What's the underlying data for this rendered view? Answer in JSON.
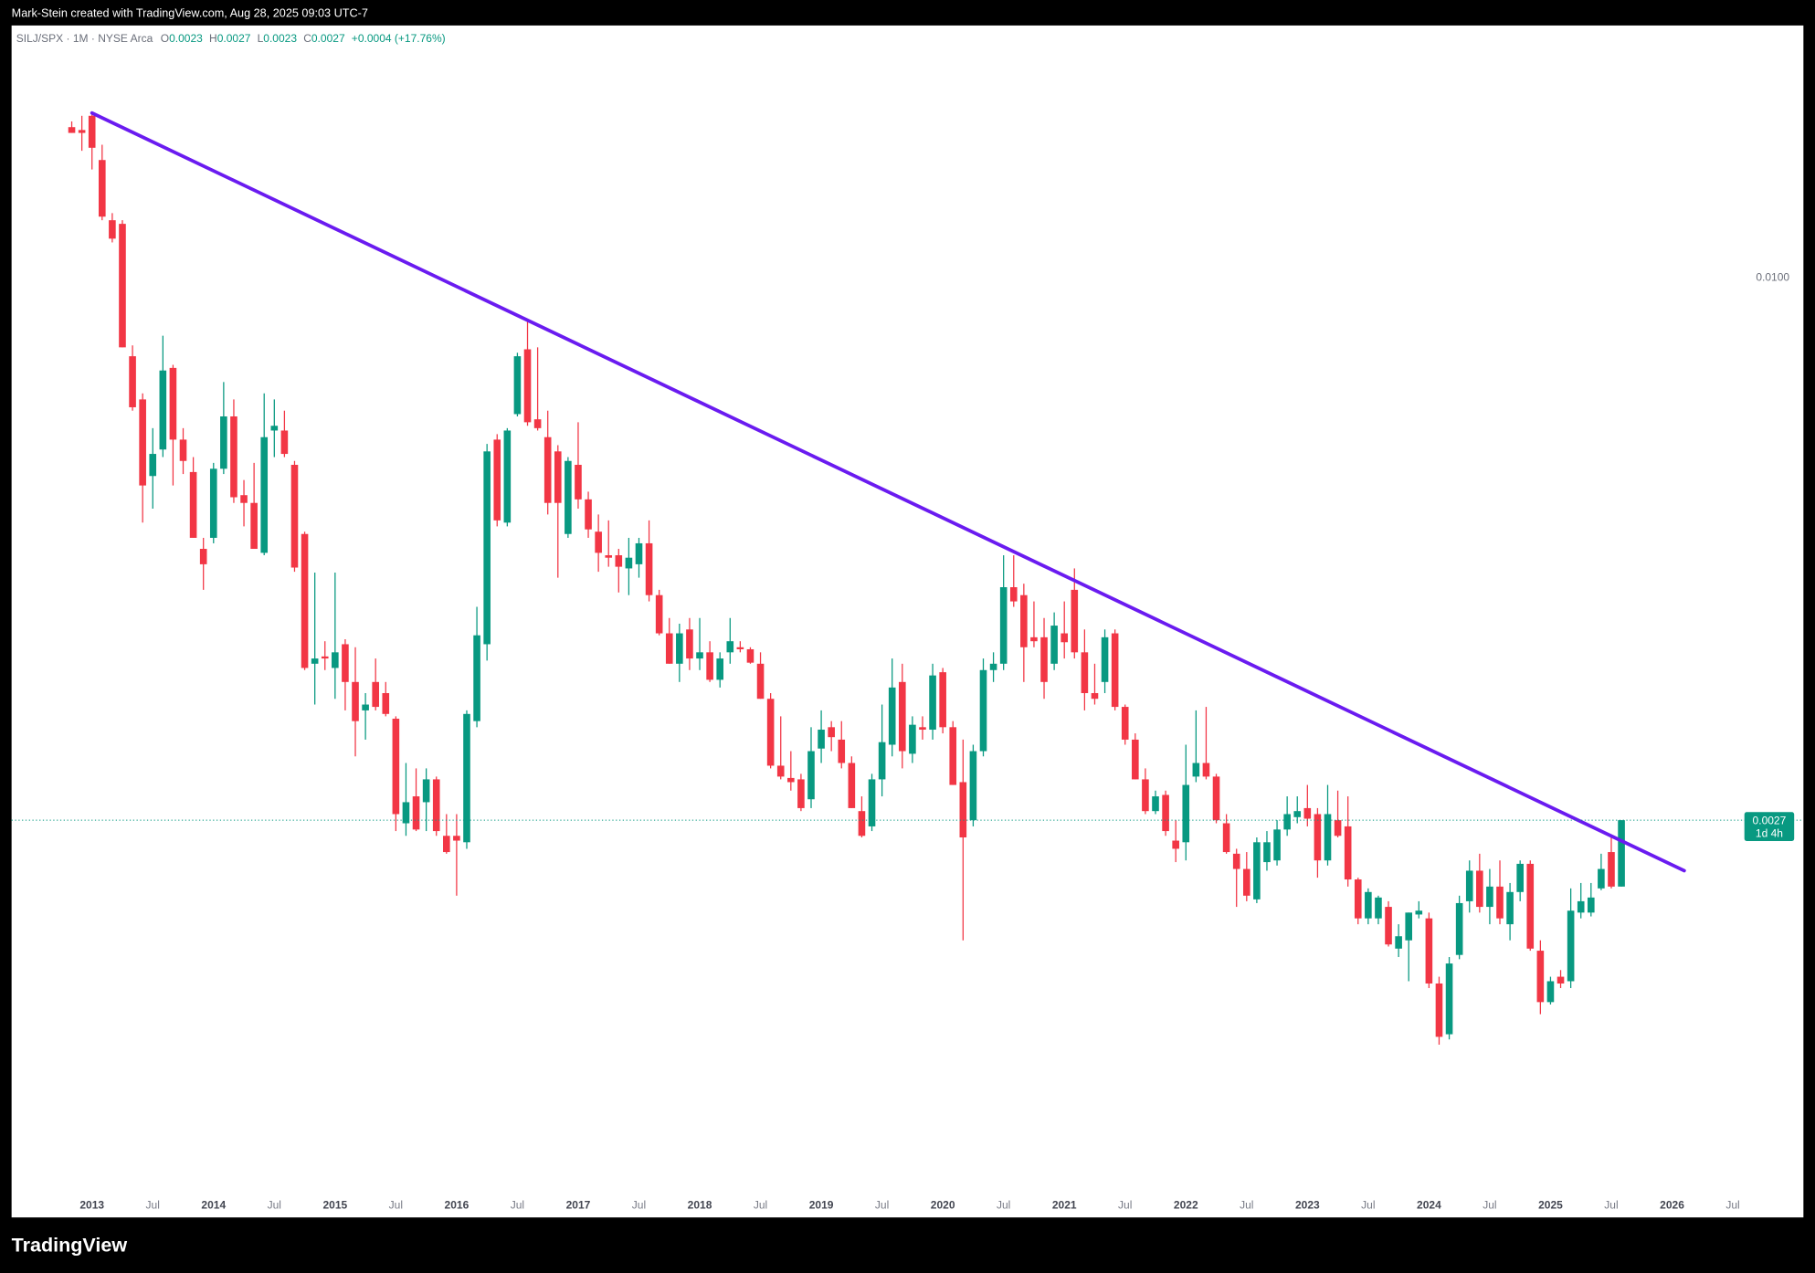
{
  "chart_data": {
    "type": "candlestick",
    "credit": "Mark-Stein created with TradingView.com, Aug 28, 2025 09:03 UTC-7",
    "symbol": "SILJ/SPX · 1M · NYSE Arca",
    "legend": {
      "o_label": "O",
      "o": "0.0023",
      "h_label": "H",
      "h": "0.0027",
      "l_label": "L",
      "l": "0.0023",
      "c_label": "C",
      "c": "0.0027",
      "change": "+0.0004 (+17.76%)"
    },
    "price_label": "0.0027",
    "countdown": "1d 4h",
    "brand": "TradingView",
    "log_scale": true,
    "up_color": "#089981",
    "down_color": "#f23645",
    "ylim": [
      0.0011,
      0.018
    ],
    "yticks": [
      {
        "value": 0.01,
        "label": "0.0100"
      }
    ],
    "xlim": [
      -5.94,
      170.97
    ],
    "xticks": [
      {
        "value": 2,
        "label": "2013"
      },
      {
        "value": 8,
        "label": "Jul"
      },
      {
        "value": 14,
        "label": "2014"
      },
      {
        "value": 20,
        "label": "Jul"
      },
      {
        "value": 26,
        "label": "2015"
      },
      {
        "value": 32,
        "label": "Jul"
      },
      {
        "value": 38,
        "label": "2016"
      },
      {
        "value": 44,
        "label": "Jul"
      },
      {
        "value": 50,
        "label": "2017"
      },
      {
        "value": 56,
        "label": "Jul"
      },
      {
        "value": 62,
        "label": "2018"
      },
      {
        "value": 68,
        "label": "Jul"
      },
      {
        "value": 74,
        "label": "2019"
      },
      {
        "value": 80,
        "label": "Jul"
      },
      {
        "value": 86,
        "label": "2020"
      },
      {
        "value": 92,
        "label": "Jul"
      },
      {
        "value": 98,
        "label": "2021"
      },
      {
        "value": 104,
        "label": "Jul"
      },
      {
        "value": 110,
        "label": "2022"
      },
      {
        "value": 116,
        "label": "Jul"
      },
      {
        "value": 122,
        "label": "2023"
      },
      {
        "value": 128,
        "label": "Jul"
      },
      {
        "value": 134,
        "label": "2024"
      },
      {
        "value": 140,
        "label": "Jul"
      },
      {
        "value": 146,
        "label": "2025"
      },
      {
        "value": 152,
        "label": "Jul"
      },
      {
        "value": 158,
        "label": "2026"
      },
      {
        "value": 164,
        "label": "Jul"
      }
    ],
    "trendline": {
      "x": [
        2,
        159.2
      ],
      "values": [
        0.0149,
        0.00239
      ],
      "color": "#6a1bf0"
    },
    "open": [
      0.0144,
      0.0143,
      0.0148,
      0.0133,
      0.0115,
      0.0114,
      0.00828,
      0.00746,
      0.0062,
      0.00661,
      0.00805,
      0.00677,
      0.00626,
      0.0052,
      0.00534,
      0.00631,
      0.00716,
      0.00592,
      0.00581,
      0.00515,
      0.00692,
      0.00692,
      0.00637,
      0.00539,
      0.00394,
      0.00401,
      0.0039,
      0.00413,
      0.00377,
      0.00352,
      0.00377,
      0.00367,
      0.00345,
      0.00268,
      0.00286,
      0.00282,
      0.00298,
      0.0026,
      0.0026,
      0.00256,
      0.00343,
      0.00413,
      0.00677,
      0.00554,
      0.0072,
      0.00842,
      0.00711,
      0.00681,
      0.00658,
      0.00539,
      0.00637,
      0.00586,
      0.00542,
      0.00512,
      0.00512,
      0.00496,
      0.00501,
      0.00527,
      0.00465,
      0.00424,
      0.00394,
      0.00428,
      0.00399,
      0.00405,
      0.00379,
      0.00405,
      0.0041,
      0.00408,
      0.00394,
      0.00362,
      0.00308,
      0.00299,
      0.00298,
      0.00284,
      0.00321,
      0.00338,
      0.00328,
      0.0031,
      0.00276,
      0.00266,
      0.00298,
      0.00324,
      0.00377,
      0.00317,
      0.00338,
      0.00336,
      0.00386,
      0.00338,
      0.00296,
      0.0027,
      0.00319,
      0.00388,
      0.00394,
      0.00474,
      0.00465,
      0.0042,
      0.0042,
      0.00394,
      0.00424,
      0.00471,
      0.00405,
      0.00367,
      0.00377,
      0.00424,
      0.00355,
      0.00328,
      0.00298,
      0.00276,
      0.00287,
      0.00257,
      0.00256,
      0.003,
      0.0031,
      0.003,
      0.00268,
      0.00249,
      0.0024,
      0.00223,
      0.00244,
      0.00245,
      0.00264,
      0.00272,
      0.00278,
      0.00274,
      0.00245,
      0.0027,
      0.00266,
      0.00234,
      0.00213,
      0.00213,
      0.00219,
      0.00198,
      0.00202,
      0.00215,
      0.00213,
      0.00182,
      0.00161,
      0.00195,
      0.00222,
      0.00239,
      0.00219,
      0.0023,
      0.0021,
      0.00227,
      0.00243,
      0.00197,
      0.00174,
      0.00185,
      0.00183,
      0.00216,
      0.00216,
      0.00229,
      0.0025,
      0.0023
    ],
    "high": [
      0.0146,
      0.0148,
      0.0149,
      0.0138,
      0.0117,
      0.0115,
      0.0085,
      0.00757,
      0.00696,
      0.0087,
      0.00811,
      0.00696,
      0.00649,
      0.00534,
      0.0064,
      0.00778,
      0.00746,
      0.00614,
      0.0064,
      0.00757,
      0.00746,
      0.00726,
      0.00643,
      0.00542,
      0.00491,
      0.00416,
      0.00491,
      0.00418,
      0.0041,
      0.00367,
      0.00399,
      0.00377,
      0.00347,
      0.0031,
      0.00306,
      0.00306,
      0.003,
      0.00274,
      0.00274,
      0.00352,
      0.00452,
      0.0067,
      0.00686,
      0.00696,
      0.00835,
      0.009,
      0.00846,
      0.00726,
      0.00668,
      0.00649,
      0.00706,
      0.00597,
      0.00565,
      0.00557,
      0.0052,
      0.00534,
      0.00534,
      0.00557,
      0.00471,
      0.0044,
      0.00434,
      0.0044,
      0.0044,
      0.00416,
      0.00405,
      0.0044,
      0.00416,
      0.0041,
      0.00405,
      0.00367,
      0.00347,
      0.00319,
      0.00302,
      0.00338,
      0.00352,
      0.00343,
      0.00343,
      0.00315,
      0.00286,
      0.00302,
      0.00357,
      0.00399,
      0.00394,
      0.00347,
      0.00347,
      0.00394,
      0.0039,
      0.00343,
      0.00328,
      0.00324,
      0.00399,
      0.00405,
      0.00512,
      0.00512,
      0.00478,
      0.00458,
      0.0044,
      0.00446,
      0.00458,
      0.00496,
      0.00428,
      0.00394,
      0.00428,
      0.00428,
      0.00357,
      0.00333,
      0.00306,
      0.0029,
      0.0029,
      0.0027,
      0.00324,
      0.00352,
      0.00355,
      0.00302,
      0.00274,
      0.00252,
      0.0025,
      0.00259,
      0.00263,
      0.0027,
      0.00286,
      0.00286,
      0.00294,
      0.00278,
      0.00294,
      0.0029,
      0.00286,
      0.00235,
      0.00229,
      0.00225,
      0.00222,
      0.0021,
      0.00216,
      0.00222,
      0.00216,
      0.00185,
      0.00194,
      0.00225,
      0.00245,
      0.00249,
      0.0024,
      0.00245,
      0.00232,
      0.00245,
      0.00245,
      0.00202,
      0.00185,
      0.00188,
      0.00229,
      0.00232,
      0.00232,
      0.00249,
      0.00261,
      0.0027
    ],
    "low": [
      0.0142,
      0.0136,
      0.013,
      0.0115,
      0.0109,
      0.00846,
      0.00726,
      0.00554,
      0.00573,
      0.00649,
      0.00606,
      0.00623,
      0.00534,
      0.00471,
      0.00527,
      0.00623,
      0.00581,
      0.00549,
      0.0052,
      0.00512,
      0.00649,
      0.00649,
      0.00492,
      0.00388,
      0.00357,
      0.00388,
      0.00362,
      0.00352,
      0.00315,
      0.00328,
      0.00352,
      0.00347,
      0.00263,
      0.0026,
      0.00263,
      0.00263,
      0.0026,
      0.00249,
      0.00225,
      0.00252,
      0.00338,
      0.00397,
      0.00549,
      0.00549,
      0.00716,
      0.007,
      0.00692,
      0.00565,
      0.00485,
      0.00534,
      0.00573,
      0.00534,
      0.00492,
      0.00498,
      0.00468,
      0.00465,
      0.00485,
      0.00458,
      0.00422,
      0.00394,
      0.00377,
      0.00388,
      0.00388,
      0.00377,
      0.00372,
      0.00394,
      0.00405,
      0.00394,
      0.00362,
      0.00306,
      0.00298,
      0.0029,
      0.00276,
      0.00278,
      0.0031,
      0.00319,
      0.00306,
      0.00278,
      0.00259,
      0.00263,
      0.00286,
      0.00315,
      0.00306,
      0.0031,
      0.00328,
      0.00328,
      0.00333,
      0.00294,
      0.00202,
      0.00266,
      0.00315,
      0.00377,
      0.00388,
      0.00452,
      0.00377,
      0.0041,
      0.00362,
      0.00388,
      0.00399,
      0.00399,
      0.00352,
      0.00357,
      0.00367,
      0.00352,
      0.00324,
      0.00298,
      0.00274,
      0.00274,
      0.0026,
      0.00244,
      0.00245,
      0.00296,
      0.00298,
      0.00268,
      0.00249,
      0.00219,
      0.00222,
      0.00221,
      0.00239,
      0.00242,
      0.0026,
      0.00268,
      0.00266,
      0.00235,
      0.00242,
      0.00259,
      0.0023,
      0.0021,
      0.0021,
      0.0021,
      0.00199,
      0.00194,
      0.00183,
      0.00213,
      0.0018,
      0.00157,
      0.00159,
      0.00193,
      0.00216,
      0.00216,
      0.0021,
      0.0021,
      0.00202,
      0.00222,
      0.00197,
      0.00169,
      0.00173,
      0.0018,
      0.0018,
      0.00213,
      0.00214,
      0.00228,
      0.00229,
      0.0023
    ],
    "close": [
      0.0142,
      0.0142,
      0.0137,
      0.0116,
      0.011,
      0.00846,
      0.00732,
      0.00606,
      0.00654,
      0.008,
      0.00677,
      0.00643,
      0.00534,
      0.00501,
      0.00631,
      0.00716,
      0.00589,
      0.00581,
      0.0052,
      0.00681,
      0.007,
      0.00654,
      0.00497,
      0.0039,
      0.00399,
      0.00399,
      0.00405,
      0.00377,
      0.00343,
      0.00357,
      0.00355,
      0.00349,
      0.00274,
      0.00282,
      0.00264,
      0.00298,
      0.00263,
      0.0025,
      0.00257,
      0.00349,
      0.00422,
      0.00658,
      0.00557,
      0.00692,
      0.00828,
      0.00706,
      0.00696,
      0.00581,
      0.00581,
      0.00643,
      0.00586,
      0.00545,
      0.00515,
      0.00509,
      0.00498,
      0.00509,
      0.00527,
      0.00465,
      0.00424,
      0.00394,
      0.00424,
      0.00399,
      0.00405,
      0.00379,
      0.00399,
      0.00416,
      0.00408,
      0.00395,
      0.00362,
      0.00308,
      0.003,
      0.00296,
      0.00278,
      0.00319,
      0.00336,
      0.0033,
      0.0031,
      0.00278,
      0.0026,
      0.00298,
      0.00326,
      0.00372,
      0.00319,
      0.0034,
      0.00336,
      0.00383,
      0.00338,
      0.00294,
      0.00259,
      0.00319,
      0.00388,
      0.00394,
      0.00474,
      0.00458,
      0.0041,
      0.00416,
      0.00377,
      0.00432,
      0.00415,
      0.00405,
      0.00367,
      0.00362,
      0.0042,
      0.00355,
      0.00328,
      0.00298,
      0.00276,
      0.00286,
      0.00263,
      0.00252,
      0.00294,
      0.0031,
      0.003,
      0.0027,
      0.0025,
      0.0024,
      0.00225,
      0.00256,
      0.00256,
      0.00264,
      0.00274,
      0.00276,
      0.00271,
      0.00245,
      0.00274,
      0.0026,
      0.00234,
      0.00213,
      0.00227,
      0.00224,
      0.002,
      0.00204,
      0.00216,
      0.00217,
      0.00182,
      0.0016,
      0.00191,
      0.00221,
      0.00239,
      0.00219,
      0.0023,
      0.00213,
      0.00227,
      0.00243,
      0.00198,
      0.00174,
      0.00183,
      0.00182,
      0.00217,
      0.00222,
      0.00224,
      0.0024,
      0.0023,
      0.0027
    ]
  }
}
